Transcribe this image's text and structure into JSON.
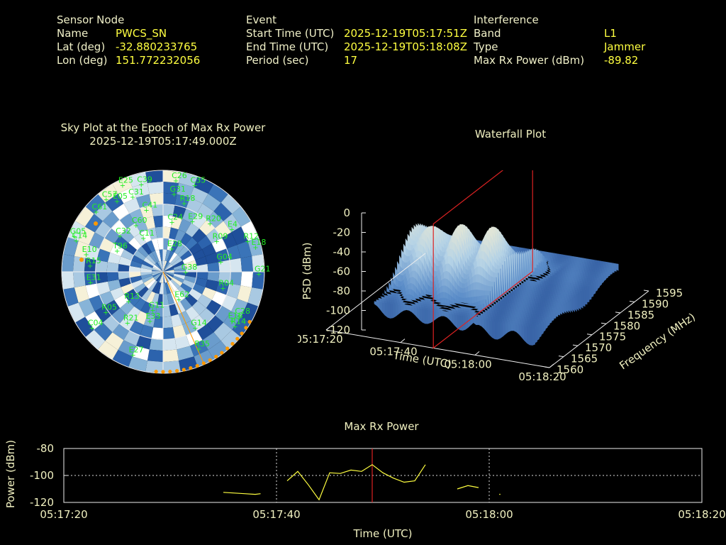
{
  "header": {
    "sensor": {
      "heading": "Sensor Node",
      "name_label": "Name",
      "name": "PWCS_SN",
      "lat_label": "Lat (deg)",
      "lat": "-32.880233765",
      "lon_label": "Lon (deg)",
      "lon": "151.772232056"
    },
    "event": {
      "heading": "Event",
      "start_label": "Start Time (UTC)",
      "start": "2025-12-19T05:17:51Z",
      "end_label": "End Time (UTC)",
      "end": "2025-12-19T05:18:08Z",
      "period_label": "Period (sec)",
      "period": "17"
    },
    "interference": {
      "heading": "Interference",
      "band_label": "Band",
      "band": "L1",
      "type_label": "Type",
      "type": "Jammer",
      "power_label": "Max Rx Power (dBm)",
      "power": "-89.82"
    }
  },
  "colors": {
    "text": "#f0f0c0",
    "value": "#ffff40",
    "sat": "#22ee22",
    "marker": "#ff9900",
    "cursor": "#dd2222",
    "trace": "#ffff40"
  },
  "chart_data": [
    {
      "type": "scatter",
      "title": "Sky Plot at the Epoch of Max Rx Power",
      "subtitle": "2025-12-19T05:17:49.000Z",
      "satellites": [
        {
          "id": "C39",
          "az": 346,
          "el": 10
        },
        {
          "id": "E25",
          "az": 335,
          "el": 5
        },
        {
          "id": "C26",
          "az": 8,
          "el": 8
        },
        {
          "id": "C35",
          "az": 20,
          "el": 8
        },
        {
          "id": "C57",
          "az": 322,
          "el": 8
        },
        {
          "id": "E05",
          "az": 327,
          "el": 15
        },
        {
          "id": "C61",
          "az": 312,
          "el": 10
        },
        {
          "id": "C31",
          "az": 338,
          "el": 18
        },
        {
          "id": "G31",
          "az": 8,
          "el": 20
        },
        {
          "id": "R18",
          "az": 17,
          "el": 26
        },
        {
          "id": "C41",
          "az": 345,
          "el": 33
        },
        {
          "id": "C60",
          "az": 330,
          "el": 42
        },
        {
          "id": "C24",
          "az": 10,
          "el": 45
        },
        {
          "id": "E29",
          "az": 30,
          "el": 38
        },
        {
          "id": "R20",
          "az": 44,
          "el": 30
        },
        {
          "id": "E4",
          "az": 58,
          "el": 18
        },
        {
          "id": "R12",
          "az": 70,
          "el": 10
        },
        {
          "id": "E18",
          "az": 75,
          "el": 5
        },
        {
          "id": "R09",
          "az": 60,
          "el": 35
        },
        {
          "id": "G04",
          "az": 80,
          "el": 38
        },
        {
          "id": "G21",
          "az": 91,
          "el": 5
        },
        {
          "id": "R04",
          "az": 105,
          "el": 35
        },
        {
          "id": "C28",
          "az": 120,
          "el": 12
        },
        {
          "id": "E16",
          "az": 125,
          "el": 15
        },
        {
          "id": "R14",
          "az": 127,
          "el": 10
        },
        {
          "id": "G14",
          "az": 150,
          "el": 33
        },
        {
          "id": "R35",
          "az": 155,
          "el": 15
        },
        {
          "id": "E27",
          "az": 200,
          "el": 12
        },
        {
          "id": "R21",
          "az": 215,
          "el": 35
        },
        {
          "id": "C04",
          "az": 232,
          "el": 10
        },
        {
          "id": "G11",
          "az": 195,
          "el": 55
        },
        {
          "id": "E33",
          "az": 195,
          "el": 45
        },
        {
          "id": "E62",
          "az": 150,
          "el": 62
        },
        {
          "id": "E31",
          "az": 262,
          "el": 25
        },
        {
          "id": "R15",
          "az": 275,
          "el": 25
        },
        {
          "id": "R05",
          "az": 235,
          "el": 28
        },
        {
          "id": "T96",
          "az": 295,
          "el": 45
        },
        {
          "id": "C32",
          "az": 310,
          "el": 40
        },
        {
          "id": "E10",
          "az": 283,
          "el": 20
        },
        {
          "id": "C14",
          "az": 290,
          "el": 8
        },
        {
          "id": "G05",
          "az": 292,
          "el": 5
        },
        {
          "id": "R13",
          "az": 230,
          "el": 50
        },
        {
          "id": "C11",
          "az": 330,
          "el": 55
        },
        {
          "id": "E28",
          "az": 20,
          "el": 68
        },
        {
          "id": "G38",
          "az": 90,
          "el": 70
        }
      ],
      "rings": [
        0,
        30,
        60
      ]
    },
    {
      "type": "area",
      "title": "Waterfall Plot",
      "xlabel": "Time (UTC)",
      "ylabel": "Frequency (MHz)",
      "zlabel": "PSD (dBm)",
      "x_ticks": [
        "05:17:20",
        "05:17:40",
        "05:18:00",
        "05:18:20"
      ],
      "y_ticks": [
        "1560",
        "1565",
        "1570",
        "1575",
        "1580",
        "1585",
        "1590",
        "1595"
      ],
      "z_ticks": [
        "0",
        "-20",
        "-40",
        "-60",
        "-80",
        "-100",
        "-120"
      ],
      "zlim": [
        -120,
        0
      ],
      "ylim": [
        1560,
        1595
      ],
      "cursor_time": "05:17:49"
    },
    {
      "type": "line",
      "title": "Max Rx Power",
      "xlabel": "Time (UTC)",
      "ylabel": "Power (dBm)",
      "x_ticks": [
        "05:17:20",
        "05:17:40",
        "05:18:00",
        "05:18:20"
      ],
      "y_ticks": [
        -80,
        -100,
        -120
      ],
      "ylim": [
        -120,
        -80
      ],
      "xlim_sec": [
        0,
        60
      ],
      "cursor_sec": 29,
      "segments": [
        [
          [
            15,
            -112.5
          ],
          [
            17,
            -113.5
          ],
          [
            18,
            -114
          ],
          [
            18.5,
            -113.5
          ]
        ],
        [
          [
            21,
            -104
          ],
          [
            22,
            -97
          ],
          [
            23,
            -107
          ],
          [
            24,
            -118
          ],
          [
            25,
            -98
          ],
          [
            26,
            -98.5
          ],
          [
            27,
            -96
          ],
          [
            28,
            -97
          ],
          [
            29,
            -92
          ],
          [
            30,
            -98
          ],
          [
            31,
            -102
          ],
          [
            32,
            -105
          ],
          [
            33,
            -104
          ],
          [
            34,
            -92
          ]
        ],
        [
          [
            37,
            -110
          ],
          [
            38,
            -107.5
          ],
          [
            39,
            -109
          ]
        ],
        [
          [
            41,
            -114
          ]
        ]
      ]
    }
  ]
}
